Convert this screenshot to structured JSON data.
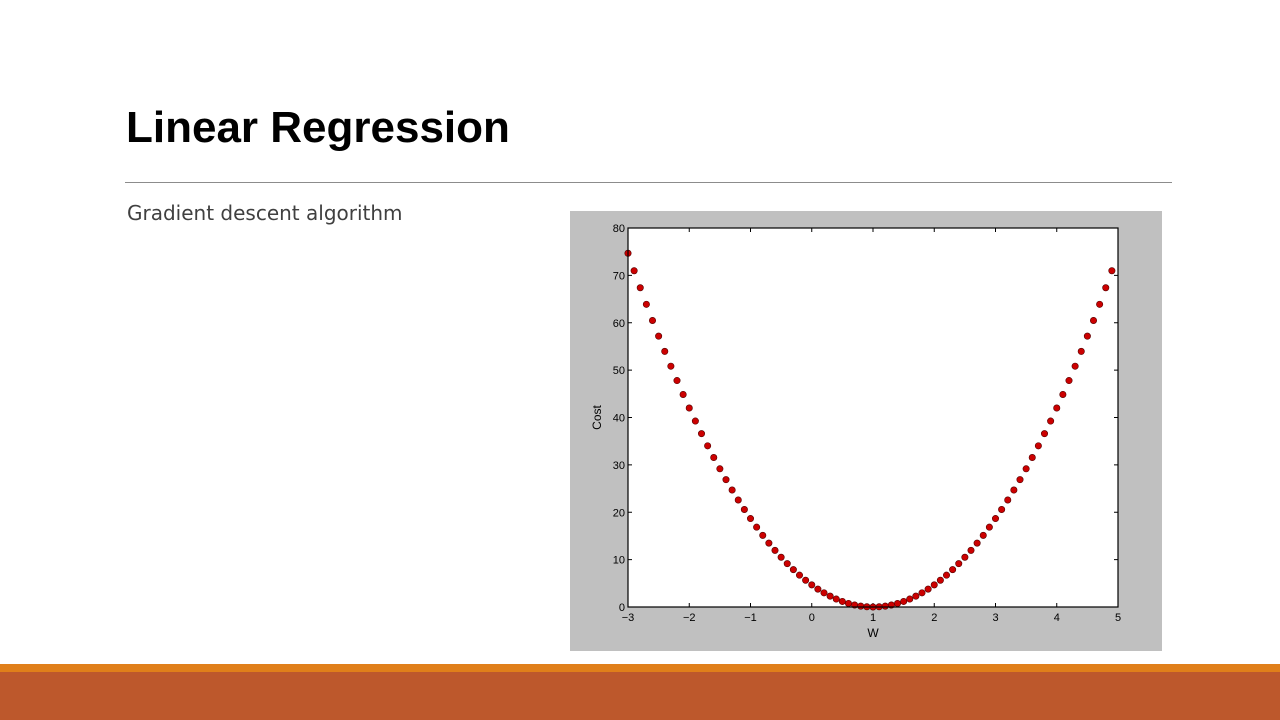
{
  "slide": {
    "title": "Linear Regression",
    "body_text": "Gradient descent algorithm"
  },
  "colors": {
    "footer_top": "#e07f1a",
    "footer_main": "#bd582c",
    "figure_background": "#c0c0c0",
    "marker": "#cc0000"
  },
  "chart_data": {
    "type": "scatter",
    "title": "",
    "xlabel": "W",
    "ylabel": "Cost",
    "xlim": [
      -3,
      5
    ],
    "ylim": [
      0,
      80
    ],
    "xticks": [
      -3,
      -2,
      -1,
      0,
      1,
      2,
      3,
      4,
      5
    ],
    "yticks": [
      0,
      10,
      20,
      30,
      40,
      50,
      60,
      70,
      80
    ],
    "xtick_labels": [
      "−3",
      "−2",
      "−1",
      "0",
      "1",
      "2",
      "3",
      "4",
      "5"
    ],
    "ytick_labels": [
      "0",
      "10",
      "20",
      "30",
      "40",
      "50",
      "60",
      "70",
      "80"
    ],
    "grid": false,
    "legend": null,
    "series": [
      {
        "x": [
          -3.0,
          -2.9,
          -2.8,
          -2.7,
          -2.6,
          -2.5,
          -2.4,
          -2.3,
          -2.2,
          -2.1,
          -2.0,
          -1.9,
          -1.8,
          -1.7,
          -1.6,
          -1.5,
          -1.4,
          -1.3,
          -1.2,
          -1.1,
          -1.0,
          -0.9,
          -0.8,
          -0.7,
          -0.6,
          -0.5,
          -0.4,
          -0.3,
          -0.2,
          -0.1,
          0.0,
          0.1,
          0.2,
          0.3,
          0.4,
          0.5,
          0.6,
          0.7,
          0.8,
          0.9,
          1.0,
          1.1,
          1.2,
          1.3,
          1.4,
          1.5,
          1.6,
          1.7,
          1.8,
          1.9,
          2.0,
          2.1,
          2.2,
          2.3,
          2.4,
          2.5,
          2.6,
          2.7,
          2.8,
          2.9,
          3.0,
          3.1,
          3.2,
          3.3,
          3.4,
          3.5,
          3.6,
          3.7,
          3.8,
          3.9,
          4.0,
          4.1,
          4.2,
          4.3,
          4.4,
          4.5,
          4.6,
          4.7,
          4.8,
          4.9
        ],
        "y": [
          74.67,
          70.98,
          67.39,
          63.89,
          60.48,
          57.17,
          53.95,
          50.83,
          47.8,
          44.86,
          42.0,
          39.25,
          36.59,
          34.02,
          31.55,
          29.17,
          26.88,
          24.69,
          22.59,
          20.58,
          18.67,
          16.85,
          15.12,
          13.49,
          11.95,
          10.5,
          9.15,
          7.89,
          6.72,
          5.65,
          4.67,
          3.78,
          2.99,
          2.29,
          1.68,
          1.17,
          0.75,
          0.42,
          0.19,
          0.05,
          0.0,
          0.05,
          0.19,
          0.42,
          0.75,
          1.17,
          1.68,
          2.29,
          2.99,
          3.78,
          4.67,
          5.65,
          6.72,
          7.89,
          9.15,
          10.5,
          11.95,
          13.49,
          15.12,
          16.85,
          18.67,
          20.58,
          22.59,
          24.69,
          26.88,
          29.17,
          31.55,
          34.02,
          36.59,
          39.25,
          42.0,
          44.86,
          47.8,
          50.83,
          53.95,
          57.17,
          60.48,
          63.89,
          67.39,
          70.98
        ]
      }
    ]
  }
}
